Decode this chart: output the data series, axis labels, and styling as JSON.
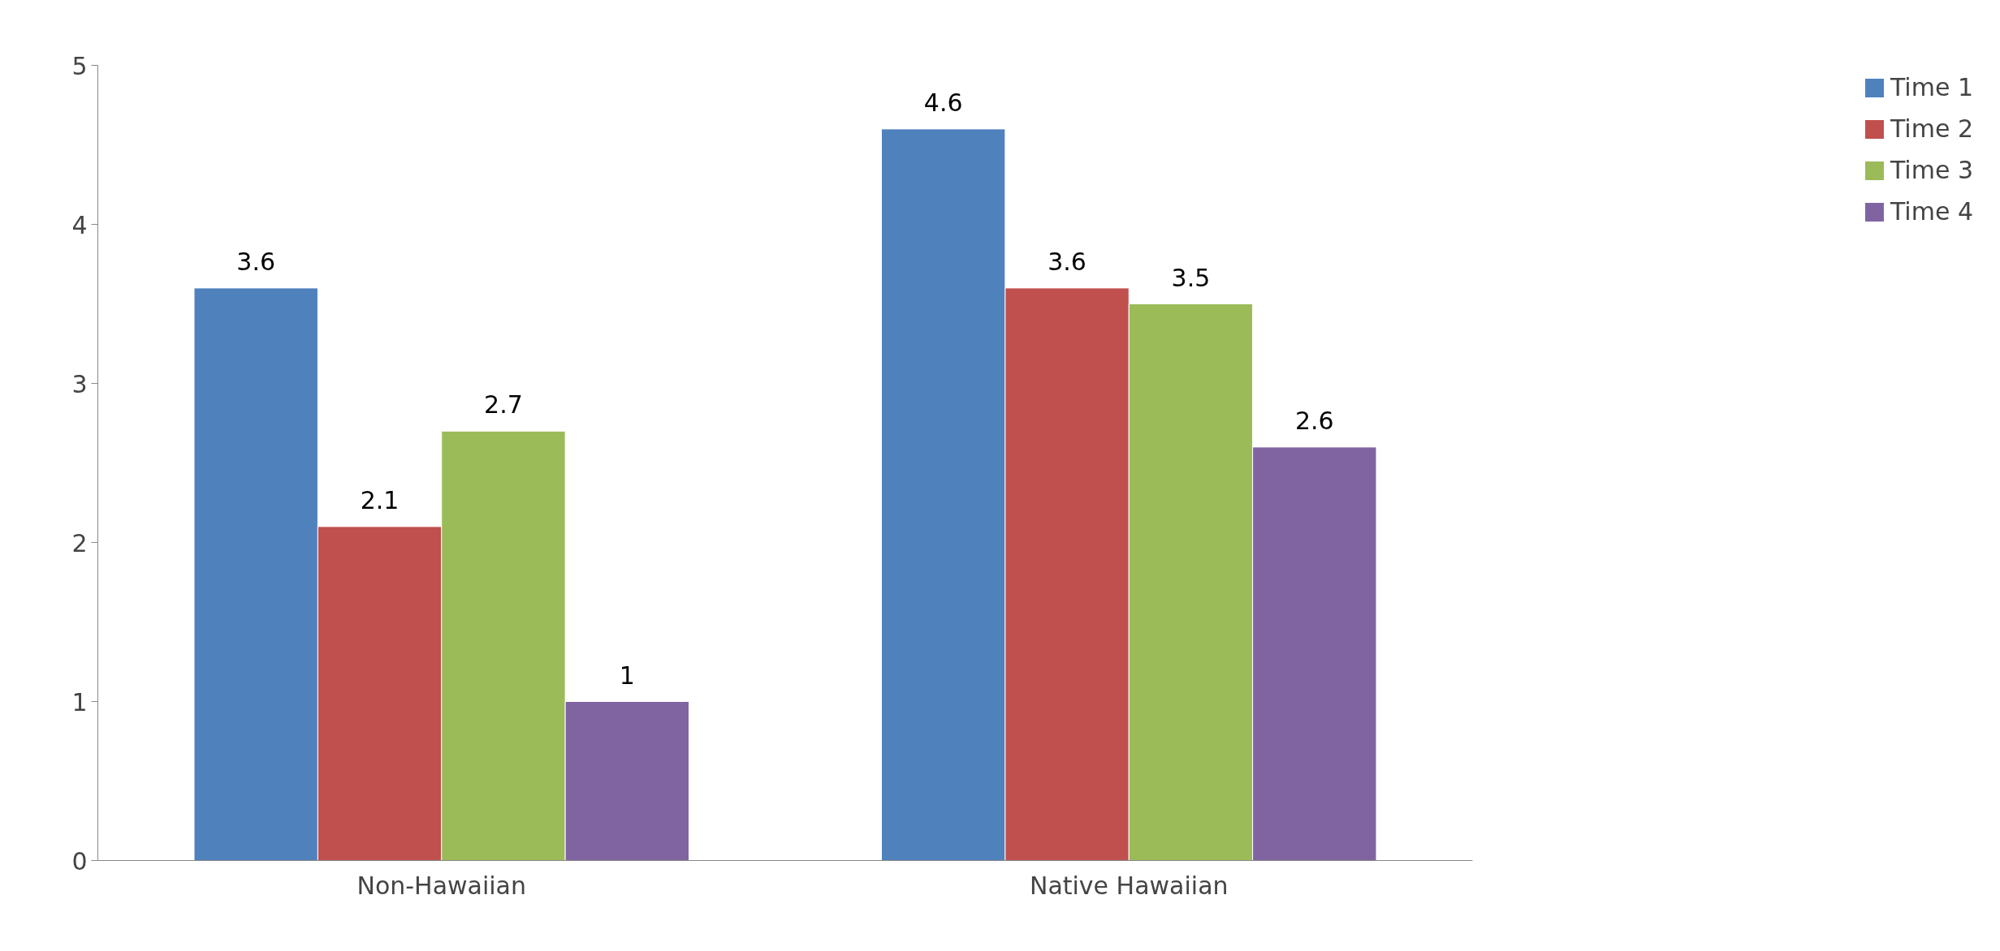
{
  "chart_data": {
    "type": "bar",
    "categories": [
      "Non-Hawaiian",
      "Native Hawaiian"
    ],
    "series": [
      {
        "name": "Time 1",
        "color": "#4f81bd",
        "values": [
          3.6,
          4.6
        ]
      },
      {
        "name": "Time 2",
        "color": "#c0504d",
        "values": [
          2.1,
          3.6
        ]
      },
      {
        "name": "Time 3",
        "color": "#9bbb59",
        "values": [
          2.7,
          3.5
        ]
      },
      {
        "name": "Time 4",
        "color": "#8064a2",
        "values": [
          1,
          2.6
        ]
      }
    ],
    "ylim": [
      0,
      5
    ],
    "yticks": [
      0,
      1,
      2,
      3,
      4,
      5
    ],
    "grid": false,
    "legend": "right",
    "data_labels": true
  }
}
